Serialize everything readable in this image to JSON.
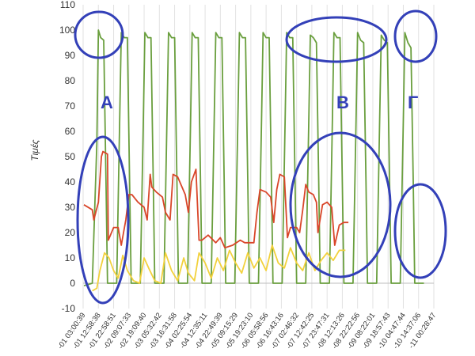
{
  "chart_data": {
    "type": "line",
    "ylabel": "Τιμές",
    "ylim": [
      -10,
      110
    ],
    "yticks": [
      -10,
      0,
      10,
      20,
      30,
      40,
      50,
      60,
      70,
      80,
      90,
      100,
      110
    ],
    "grid": "vertical",
    "legend": "none",
    "x_categories": [
      "-01 03:00:39",
      "-01 12:58:38",
      "-01 22:58:51",
      "-02 09:07:33",
      "-02 19:09:40",
      "-03 05:32:42",
      "-03 16:31:58",
      "-04 02:25:54",
      "-04 12:35:11",
      "-04 22:49:39",
      "-05 09:15:29",
      "-05 19:23:10",
      "-06 05:58:56",
      "-06 16:43:16",
      "-07 02:46:32",
      "-07 12:42:25",
      "-07 23:47:31",
      "-08 12:13:26",
      "-08 22:22:56",
      "-09 08:22:01",
      "-09 18:57:43",
      "-10 04:47:44",
      "-10 14:37:06",
      "-11 00:28:47"
    ],
    "x_range": [
      0,
      23
    ],
    "series": [
      {
        "color": "#6a9f3e",
        "points": [
          [
            0.05,
            -1
          ],
          [
            0.6,
            0
          ],
          [
            0.9,
            55
          ],
          [
            1.0,
            100
          ],
          [
            1.15,
            97
          ],
          [
            1.35,
            96
          ],
          [
            1.5,
            40
          ],
          [
            1.6,
            0
          ],
          [
            2.2,
            0
          ],
          [
            2.4,
            65
          ],
          [
            2.5,
            99
          ],
          [
            2.7,
            97
          ],
          [
            2.9,
            97
          ],
          [
            3.05,
            40
          ],
          [
            3.15,
            0
          ],
          [
            3.75,
            0
          ],
          [
            3.95,
            65
          ],
          [
            4.05,
            99
          ],
          [
            4.25,
            97
          ],
          [
            4.45,
            97
          ],
          [
            4.6,
            40
          ],
          [
            4.7,
            0
          ],
          [
            5.3,
            0
          ],
          [
            5.5,
            65
          ],
          [
            5.6,
            99
          ],
          [
            5.8,
            97
          ],
          [
            6.0,
            97
          ],
          [
            6.15,
            40
          ],
          [
            6.25,
            0
          ],
          [
            6.85,
            0
          ],
          [
            7.05,
            65
          ],
          [
            7.15,
            99
          ],
          [
            7.35,
            97
          ],
          [
            7.55,
            97
          ],
          [
            7.7,
            40
          ],
          [
            7.8,
            0
          ],
          [
            8.4,
            0
          ],
          [
            8.6,
            65
          ],
          [
            8.7,
            99
          ],
          [
            8.9,
            97
          ],
          [
            9.1,
            97
          ],
          [
            9.25,
            40
          ],
          [
            9.35,
            0
          ],
          [
            9.95,
            0
          ],
          [
            10.15,
            65
          ],
          [
            10.25,
            99
          ],
          [
            10.45,
            97
          ],
          [
            10.65,
            97
          ],
          [
            10.8,
            40
          ],
          [
            10.9,
            0
          ],
          [
            11.5,
            0
          ],
          [
            11.7,
            65
          ],
          [
            11.8,
            99
          ],
          [
            12.0,
            97
          ],
          [
            12.2,
            97
          ],
          [
            12.35,
            40
          ],
          [
            12.45,
            0
          ],
          [
            13.05,
            0
          ],
          [
            13.25,
            65
          ],
          [
            13.35,
            99
          ],
          [
            13.55,
            97
          ],
          [
            13.75,
            97
          ],
          [
            13.9,
            40
          ],
          [
            14.0,
            0
          ],
          [
            14.6,
            0
          ],
          [
            14.8,
            65
          ],
          [
            14.9,
            98
          ],
          [
            15.1,
            97
          ],
          [
            15.3,
            95
          ],
          [
            15.45,
            40
          ],
          [
            15.55,
            0
          ],
          [
            16.15,
            0
          ],
          [
            16.35,
            65
          ],
          [
            16.45,
            99
          ],
          [
            16.65,
            97
          ],
          [
            16.85,
            97
          ],
          [
            17.0,
            40
          ],
          [
            17.1,
            0
          ],
          [
            17.7,
            0
          ],
          [
            17.9,
            65
          ],
          [
            18.0,
            99
          ],
          [
            18.2,
            96
          ],
          [
            18.4,
            95
          ],
          [
            18.55,
            40
          ],
          [
            18.65,
            0
          ],
          [
            19.25,
            0
          ],
          [
            19.45,
            65
          ],
          [
            19.55,
            98
          ],
          [
            19.75,
            96
          ],
          [
            19.95,
            95
          ],
          [
            20.1,
            40
          ],
          [
            20.2,
            0
          ],
          [
            20.8,
            0
          ],
          [
            21.0,
            65
          ],
          [
            21.1,
            99
          ],
          [
            21.3,
            95
          ],
          [
            21.5,
            93
          ],
          [
            21.65,
            40
          ],
          [
            21.75,
            0
          ],
          [
            22.35,
            0
          ]
        ]
      },
      {
        "color": "#d9462a",
        "points": [
          [
            0.05,
            31
          ],
          [
            0.6,
            29
          ],
          [
            0.7,
            25
          ],
          [
            1.0,
            32
          ],
          [
            1.2,
            50
          ],
          [
            1.3,
            52
          ],
          [
            1.6,
            51
          ],
          [
            1.65,
            17
          ],
          [
            2.0,
            22
          ],
          [
            2.3,
            22
          ],
          [
            2.5,
            15
          ],
          [
            2.8,
            25
          ],
          [
            3.0,
            35
          ],
          [
            3.2,
            35
          ],
          [
            3.6,
            32
          ],
          [
            4.0,
            30
          ],
          [
            4.2,
            25
          ],
          [
            4.4,
            43
          ],
          [
            4.5,
            38
          ],
          [
            4.8,
            36
          ],
          [
            5.2,
            34
          ],
          [
            5.4,
            28
          ],
          [
            5.7,
            25
          ],
          [
            5.9,
            43
          ],
          [
            6.2,
            42
          ],
          [
            6.7,
            35
          ],
          [
            6.9,
            28
          ],
          [
            7.1,
            40
          ],
          [
            7.4,
            45
          ],
          [
            7.6,
            17
          ],
          [
            7.8,
            17
          ],
          [
            8.2,
            19
          ],
          [
            8.7,
            16
          ],
          [
            9.0,
            18
          ],
          [
            9.3,
            14
          ],
          [
            9.8,
            15
          ],
          [
            10.3,
            17
          ],
          [
            10.6,
            16
          ],
          [
            10.9,
            16
          ],
          [
            11.2,
            16
          ],
          [
            11.4,
            28
          ],
          [
            11.6,
            37
          ],
          [
            12.0,
            36
          ],
          [
            12.3,
            34
          ],
          [
            12.5,
            24
          ],
          [
            12.7,
            37
          ],
          [
            12.9,
            43
          ],
          [
            13.2,
            42
          ],
          [
            13.4,
            18
          ],
          [
            13.6,
            22
          ],
          [
            14.0,
            22
          ],
          [
            14.2,
            20
          ],
          [
            14.4,
            29
          ],
          [
            14.6,
            39
          ],
          [
            14.8,
            36
          ],
          [
            15.1,
            35
          ],
          [
            15.3,
            32
          ],
          [
            15.4,
            20
          ],
          [
            15.7,
            31
          ],
          [
            16.0,
            32
          ],
          [
            16.3,
            30
          ],
          [
            16.5,
            15
          ],
          [
            16.8,
            23
          ],
          [
            17.1,
            24
          ],
          [
            17.4,
            24
          ]
        ]
      },
      {
        "color": "#f2d13c",
        "points": [
          [
            0.6,
            -3
          ],
          [
            0.9,
            -2
          ],
          [
            1.1,
            5
          ],
          [
            1.4,
            12
          ],
          [
            1.7,
            10
          ],
          [
            2.0,
            5
          ],
          [
            2.3,
            2
          ],
          [
            2.6,
            11
          ],
          [
            2.9,
            5
          ],
          [
            3.3,
            1
          ],
          [
            3.7,
            0
          ],
          [
            4.0,
            10
          ],
          [
            4.3,
            6
          ],
          [
            4.7,
            1
          ],
          [
            5.1,
            0
          ],
          [
            5.4,
            12
          ],
          [
            5.8,
            5
          ],
          [
            6.2,
            1
          ],
          [
            6.6,
            10
          ],
          [
            6.9,
            4
          ],
          [
            7.3,
            1
          ],
          [
            7.6,
            12
          ],
          [
            8.0,
            8
          ],
          [
            8.4,
            2
          ],
          [
            8.8,
            10
          ],
          [
            9.2,
            5
          ],
          [
            9.6,
            13
          ],
          [
            10.0,
            8
          ],
          [
            10.4,
            4
          ],
          [
            10.8,
            12
          ],
          [
            11.2,
            6
          ],
          [
            11.6,
            10
          ],
          [
            12.0,
            5
          ],
          [
            12.4,
            15
          ],
          [
            12.8,
            8
          ],
          [
            13.2,
            6
          ],
          [
            13.6,
            14
          ],
          [
            14.0,
            8
          ],
          [
            14.4,
            5
          ],
          [
            14.8,
            12
          ],
          [
            15.2,
            5
          ],
          [
            15.6,
            9
          ],
          [
            16.0,
            12
          ],
          [
            16.4,
            9
          ],
          [
            16.8,
            13
          ],
          [
            17.2,
            13
          ]
        ]
      }
    ],
    "annotations": [
      {
        "label": "A",
        "color": "#3340b8"
      },
      {
        "label": "B",
        "color": "#3340b8"
      },
      {
        "label": "Γ",
        "color": "#3340b8"
      }
    ]
  }
}
